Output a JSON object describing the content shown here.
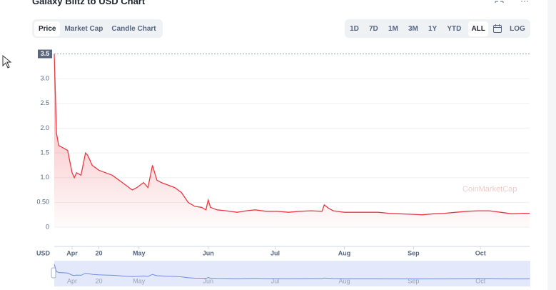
{
  "header": {
    "title": "Galaxy Blitz to USD Chart"
  },
  "tabs": [
    "Price",
    "Market Cap",
    "Candle Chart"
  ],
  "ranges": [
    "1D",
    "7D",
    "1M",
    "3M",
    "1Y",
    "YTD",
    "ALL"
  ],
  "scale_toggle": "LOG",
  "watermark": "CoinMarketCap",
  "chart_data": {
    "type": "line",
    "ylabel": "USD",
    "color": "#ea3943",
    "grid": true,
    "x": [
      0,
      1,
      2,
      4,
      6,
      8,
      9,
      10,
      12,
      14,
      15,
      17,
      20,
      23,
      26,
      29,
      32,
      35,
      37,
      40,
      42,
      44,
      45,
      46,
      48,
      51,
      54,
      57,
      60,
      63,
      66,
      68,
      69,
      70,
      73,
      77,
      82,
      86,
      90,
      95,
      100,
      105,
      110,
      115,
      120,
      121,
      123,
      125,
      130,
      135,
      140,
      145,
      150,
      155,
      160,
      165,
      170,
      175,
      180,
      185,
      190,
      195,
      200,
      205,
      210,
      213
    ],
    "values": [
      3.5,
      1.9,
      1.65,
      1.6,
      1.55,
      1.1,
      1.0,
      1.1,
      1.05,
      1.5,
      1.45,
      1.25,
      1.15,
      1.1,
      1.05,
      0.95,
      0.85,
      0.75,
      0.8,
      0.9,
      0.8,
      1.25,
      1.1,
      0.95,
      0.9,
      0.85,
      0.8,
      0.7,
      0.5,
      0.42,
      0.4,
      0.35,
      0.55,
      0.4,
      0.35,
      0.33,
      0.3,
      0.33,
      0.35,
      0.32,
      0.32,
      0.3,
      0.32,
      0.33,
      0.32,
      0.45,
      0.38,
      0.33,
      0.3,
      0.3,
      0.3,
      0.3,
      0.28,
      0.27,
      0.26,
      0.25,
      0.27,
      0.28,
      0.3,
      0.32,
      0.33,
      0.33,
      0.3,
      0.27,
      0.28,
      0.28
    ],
    "xlim": [
      0,
      213
    ],
    "xticks": [
      {
        "value": 8,
        "label": "Apr"
      },
      {
        "value": 38,
        "label": "May"
      },
      {
        "value": 69,
        "label": "Jun"
      },
      {
        "value": 99,
        "label": "Jul"
      },
      {
        "value": 130,
        "label": "Aug"
      },
      {
        "value": 161,
        "label": "Sep"
      },
      {
        "value": 191,
        "label": "Oct"
      },
      20
    ],
    "ylim": [
      0,
      3.5
    ],
    "yticks": [
      0,
      {
        "value": 0.5,
        "label": "0.50"
      },
      {
        "value": 1,
        "label": "1.0"
      },
      1.5,
      {
        "value": 2,
        "label": "2.0"
      },
      2.5,
      {
        "value": 3,
        "label": "3.0"
      },
      3.5
    ]
  }
}
